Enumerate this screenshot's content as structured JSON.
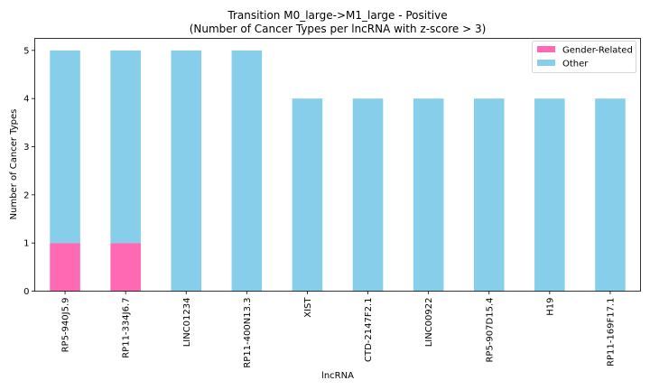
{
  "chart_data": {
    "type": "bar",
    "stacked": true,
    "title": "Transition M0_large->M1_large - Positive",
    "subtitle": "(Number of Cancer Types per lncRNA with z-score > 3)",
    "xlabel": "lncRNA",
    "ylabel": "Number of Cancer Types",
    "ylim": [
      0,
      5.25
    ],
    "yticks": [
      "0",
      "1",
      "2",
      "3",
      "4",
      "5"
    ],
    "grid": false,
    "legend_position": "top-right",
    "categories": [
      "RP5-940J5.9",
      "RP11-334J6.7",
      "LINC01234",
      "RP11-400N13.3",
      "XIST",
      "CTD-2147F2.1",
      "LINC00922",
      "RP5-907D15.4",
      "H19",
      "RP11-169F17.1"
    ],
    "series": [
      {
        "name": "Gender-Related",
        "color": "#ff69b4",
        "values": [
          1,
          1,
          0,
          0,
          0,
          0,
          0,
          0,
          0,
          0
        ]
      },
      {
        "name": "Other",
        "color": "#87ceeb",
        "values": [
          4,
          4,
          5,
          5,
          4,
          4,
          4,
          4,
          4,
          4
        ]
      }
    ]
  }
}
